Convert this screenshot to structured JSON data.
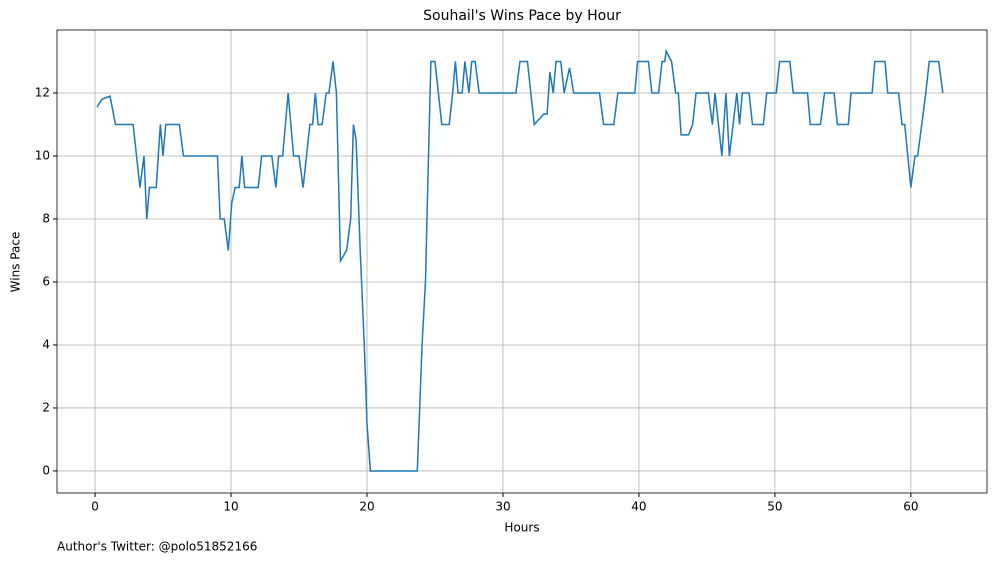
{
  "chart_data": {
    "type": "line",
    "title": "Souhail's Wins Pace by Hour",
    "x_label": "Hours",
    "y_label": "Wins Pace",
    "annotation": "Author's Twitter: @polo51852166",
    "x": [
      0.15,
      0.5,
      1.1,
      1.5,
      2.8,
      3.3,
      3.6,
      3.8,
      4.0,
      4.5,
      4.8,
      5.0,
      5.2,
      6.2,
      6.5,
      9.0,
      9.2,
      9.5,
      9.8,
      10.05,
      10.3,
      10.6,
      10.8,
      11.0,
      12.0,
      12.25,
      13.0,
      13.3,
      13.5,
      13.8,
      14.2,
      14.6,
      15.0,
      15.3,
      15.8,
      16.0,
      16.2,
      16.4,
      16.7,
      17.0,
      17.2,
      17.5,
      17.75,
      18.05,
      18.5,
      18.8,
      19.0,
      19.2,
      19.5,
      19.8,
      20.0,
      20.25,
      23.7,
      24.05,
      24.3,
      24.5,
      24.7,
      25.0,
      25.5,
      26.05,
      26.3,
      26.5,
      26.7,
      27.0,
      27.2,
      27.5,
      27.7,
      27.95,
      28.25,
      30.95,
      31.25,
      31.8,
      32.3,
      33.0,
      33.25,
      33.45,
      33.7,
      33.9,
      34.25,
      34.5,
      34.9,
      35.2,
      37.1,
      37.4,
      38.15,
      38.45,
      39.7,
      39.9,
      40.7,
      40.95,
      41.45,
      41.7,
      41.9,
      42.0,
      42.4,
      42.7,
      42.9,
      43.1,
      43.65,
      43.95,
      44.2,
      45.1,
      45.4,
      45.6,
      46.1,
      46.4,
      46.65,
      47.2,
      47.4,
      47.6,
      48.1,
      48.35,
      49.15,
      49.4,
      50.1,
      50.35,
      51.1,
      51.35,
      52.4,
      52.6,
      53.35,
      53.65,
      54.35,
      54.6,
      55.4,
      55.6,
      57.15,
      57.35,
      58.1,
      58.3,
      59.1,
      59.35,
      59.55,
      60.0,
      60.3,
      60.5,
      61.1,
      61.35,
      62.05,
      62.35
    ],
    "series": [
      {
        "name": "Wins Pace",
        "color": "#1f77b4",
        "values": [
          11.55,
          11.8,
          11.9,
          11,
          11,
          9,
          10,
          8,
          9,
          9,
          11,
          10,
          11,
          11,
          10,
          10,
          8,
          8,
          7,
          8.5,
          9,
          9,
          10,
          9,
          9,
          10,
          10,
          9,
          10,
          10,
          12,
          10,
          10,
          9,
          11,
          11,
          12,
          11,
          11,
          12,
          12,
          13,
          12,
          6.67,
          7,
          8,
          11,
          10.5,
          7,
          4,
          1.5,
          0,
          0,
          4,
          6,
          9.6,
          13,
          13,
          11,
          11,
          12,
          13,
          12,
          12,
          13,
          12,
          13,
          13,
          12,
          12,
          13,
          13,
          11,
          11.33,
          11.33,
          12.67,
          12,
          13,
          13,
          12,
          12.8,
          12,
          12,
          11,
          11,
          12,
          12,
          13,
          13,
          12,
          12,
          13,
          13,
          13.33,
          13,
          12,
          12,
          10.67,
          10.67,
          11,
          12,
          12,
          11,
          12,
          10,
          12,
          10,
          12,
          11,
          12,
          12,
          11,
          11,
          12,
          12,
          13,
          13,
          12,
          12,
          11,
          11,
          12,
          12,
          11,
          11,
          12,
          12,
          13,
          13,
          12,
          12,
          11,
          11,
          9,
          10,
          10,
          12,
          13,
          13,
          12
        ]
      }
    ],
    "xlim": [
      -2.8,
      65.6
    ],
    "ylim": [
      -0.7,
      14.0
    ],
    "xticks": [
      0,
      10,
      20,
      30,
      40,
      50,
      60
    ],
    "yticks": [
      0,
      2,
      4,
      6,
      8,
      10,
      12
    ],
    "grid": true
  }
}
